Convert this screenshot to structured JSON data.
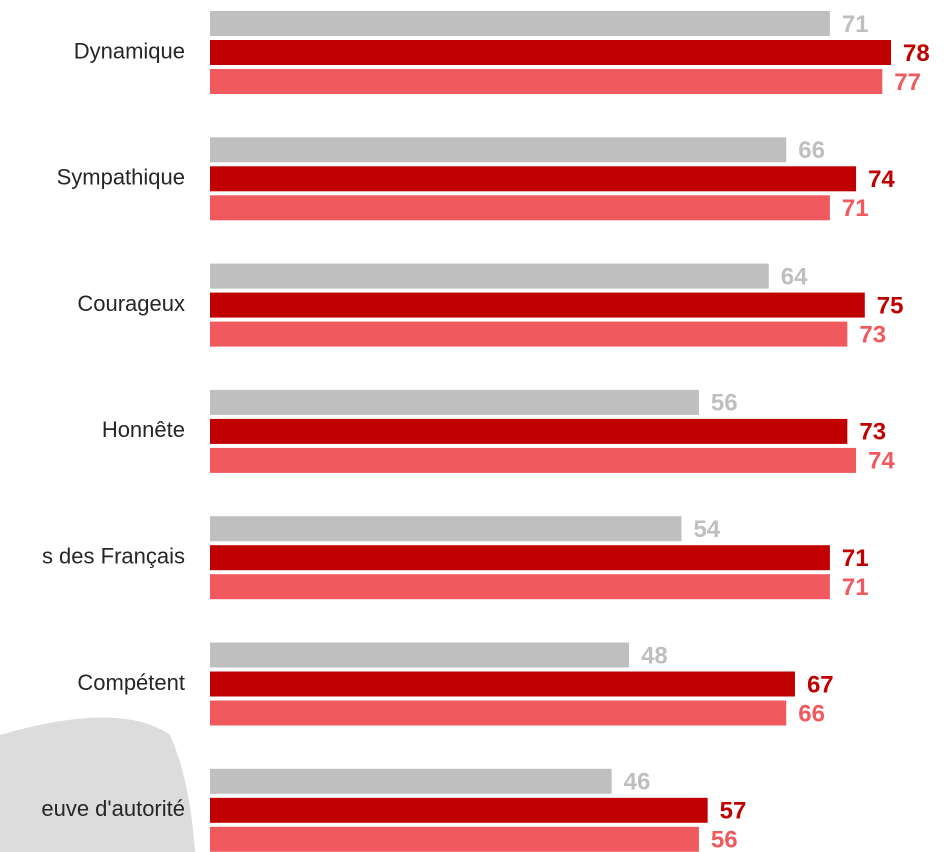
{
  "chart_data": {
    "type": "bar",
    "orientation": "horizontal",
    "categories": [
      "Dynamique",
      "Sympathique",
      "Courageux",
      "Honnête",
      "s des Français",
      "Compétent",
      "euve d'autorité"
    ],
    "series": [
      {
        "color": "#bfbfbf",
        "values": [
          71,
          66,
          64,
          56,
          54,
          48,
          46
        ]
      },
      {
        "color": "#c00000",
        "values": [
          78,
          74,
          75,
          73,
          71,
          67,
          57
        ]
      },
      {
        "color": "#f05a5f",
        "values": [
          77,
          71,
          73,
          74,
          71,
          66,
          56
        ]
      }
    ],
    "xlim": [
      0,
      78
    ]
  }
}
